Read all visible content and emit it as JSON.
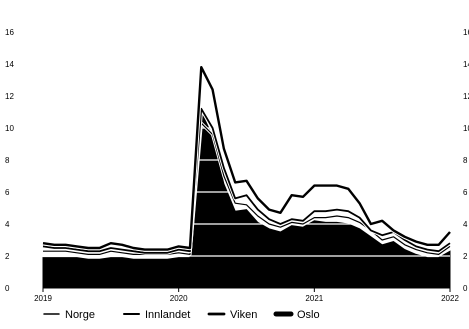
{
  "chart_data": {
    "type": "area",
    "title": "",
    "xlabel": "",
    "ylabel": "",
    "x": [
      "2019-01",
      "2019-02",
      "2019-03",
      "2019-04",
      "2019-05",
      "2019-06",
      "2019-07",
      "2019-08",
      "2019-09",
      "2019-10",
      "2019-11",
      "2019-12",
      "2020-01",
      "2020-02",
      "2020-03",
      "2020-04",
      "2020-05",
      "2020-06",
      "2020-07",
      "2020-08",
      "2020-09",
      "2020-10",
      "2020-11",
      "2020-12",
      "2021-01",
      "2021-02",
      "2021-03",
      "2021-04",
      "2021-05",
      "2021-06",
      "2021-07",
      "2021-08",
      "2021-09",
      "2021-10",
      "2021-11",
      "2021-12",
      "2022-01"
    ],
    "xticks": [
      "2019",
      "2020",
      "2021",
      "2022"
    ],
    "ylim": [
      0,
      16
    ],
    "yticks": [
      0,
      2,
      4,
      6,
      8,
      10,
      12,
      14,
      16
    ],
    "legend_position": "bottom",
    "gridlines": "white horizontal lines over the filled area",
    "series": [
      {
        "name": "Norge",
        "style": "thin-line",
        "values": [
          2.3,
          2.3,
          2.3,
          2.2,
          2.1,
          2.1,
          2.3,
          2.2,
          2.1,
          2.1,
          2.1,
          2.1,
          2.2,
          2.1,
          10.3,
          9.6,
          7.0,
          5.3,
          5.2,
          4.5,
          4.0,
          3.8,
          4.1,
          4.0,
          4.4,
          4.4,
          4.5,
          4.4,
          4.1,
          3.6,
          3.0,
          3.2,
          2.7,
          2.4,
          2.2,
          2.1,
          2.6
        ]
      },
      {
        "name": "Innlandet",
        "style": "medium-line",
        "values": [
          2.6,
          2.5,
          2.5,
          2.4,
          2.3,
          2.3,
          2.5,
          2.4,
          2.3,
          2.2,
          2.2,
          2.2,
          2.4,
          2.3,
          11.2,
          10.0,
          7.5,
          5.6,
          5.8,
          4.9,
          4.3,
          4.0,
          4.3,
          4.2,
          4.8,
          4.8,
          4.9,
          4.8,
          4.4,
          3.6,
          3.3,
          3.5,
          3.0,
          2.6,
          2.4,
          2.3,
          2.8
        ]
      },
      {
        "name": "Viken",
        "style": "thick-line",
        "values": [
          2.8,
          2.7,
          2.7,
          2.6,
          2.5,
          2.5,
          2.8,
          2.7,
          2.5,
          2.4,
          2.4,
          2.4,
          2.6,
          2.5,
          13.8,
          12.4,
          8.7,
          6.6,
          6.7,
          5.6,
          4.9,
          4.7,
          5.8,
          5.7,
          6.4,
          6.4,
          6.4,
          6.2,
          5.3,
          4.0,
          4.2,
          3.6,
          3.2,
          2.9,
          2.7,
          2.7,
          3.5
        ]
      },
      {
        "name": "Oslo",
        "style": "filled-area",
        "values": [
          1.9,
          1.9,
          1.9,
          1.9,
          1.8,
          1.8,
          1.9,
          1.9,
          1.8,
          1.8,
          1.8,
          1.8,
          1.9,
          1.9,
          11.0,
          9.5,
          6.5,
          4.8,
          4.9,
          4.1,
          3.7,
          3.5,
          3.9,
          3.8,
          4.2,
          4.1,
          4.1,
          4.0,
          3.7,
          3.2,
          2.7,
          2.9,
          2.4,
          2.1,
          1.9,
          1.9,
          2.3
        ]
      }
    ]
  }
}
